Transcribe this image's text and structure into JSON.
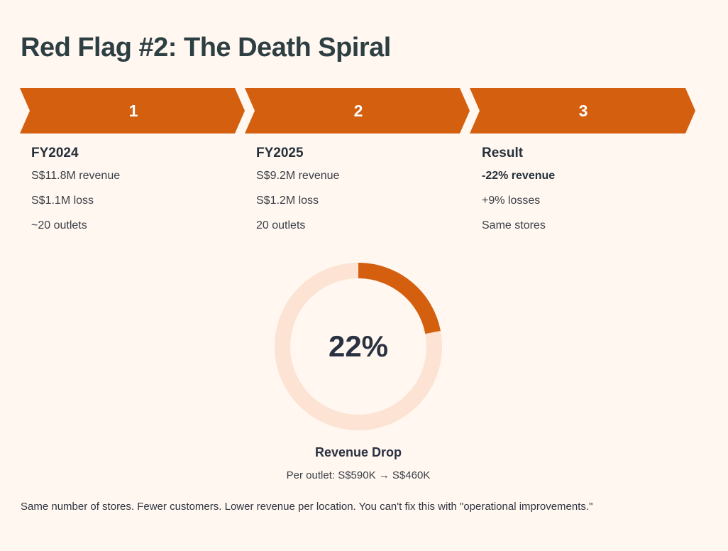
{
  "page": {
    "title": "Red Flag #2: The Death Spiral"
  },
  "steps": [
    {
      "number": "1",
      "heading": "FY2024",
      "lines": [
        "S$11.8M revenue",
        "S$1.1M loss",
        "~20 outlets"
      ]
    },
    {
      "number": "2",
      "heading": "FY2025",
      "lines": [
        "S$9.2M revenue",
        "S$1.2M loss",
        "20 outlets"
      ]
    },
    {
      "number": "3",
      "heading": "Result",
      "lines": [
        "-22% revenue",
        "+9% losses",
        "Same stores"
      ]
    }
  ],
  "donut": {
    "value_label": "22%",
    "fraction": 0.22,
    "label": "Revenue Drop",
    "sublabel": "Per outlet: S$590K → S$460K"
  },
  "footer": {
    "text": "Same number of stores. Fewer customers. Lower revenue per location. You can't fix this with \"operational improvements.\""
  },
  "colors": {
    "background": "#fff7f0",
    "accent": "#d35f0f",
    "track": "#fce3d3",
    "title": "#2d3f43"
  }
}
